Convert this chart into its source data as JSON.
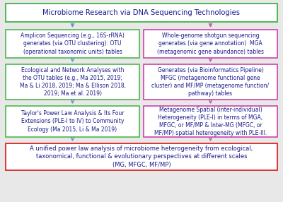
{
  "title": "Microbiome Research via DNA Sequencing Technologies",
  "title_color": "#1a1a8c",
  "title_box_edge": "#4db84d",
  "fig_bg": "#e8e8e8",
  "box_bg": "#ffffff",
  "left_boxes": [
    {
      "text": "Amplicon Sequencing (e.g., 16S-rRNA)\ngenerates (via OTU clustering): OTU\n(operational taxonomic units) tables",
      "box_edge": "#4db84d",
      "text_color": "#1a1a8c"
    },
    {
      "text": "Ecological and Network Analyses with\nthe OTU tables (e.g., Ma 2015, 2019;\nMa & Li 2018, 2019; Ma & Ellison 2018,\n2019; Ma et al. 2019)",
      "box_edge": "#4db84d",
      "text_color": "#1a1a8c"
    },
    {
      "text": "Taylor's Power Law Analysis & Its Four\nExtensions (PLE-I to IV) to Community\nEcology (Ma 2015, Li & Ma 2019)",
      "box_edge": "#4db84d",
      "text_color": "#1a1a8c"
    }
  ],
  "right_boxes": [
    {
      "text": "Whole-genome shotgun sequencing\ngenerates (via gene annotation)  MGA\n(metagenomic gene abundance) tables",
      "box_edge": "#cc44aa",
      "text_color": "#1a1a8c"
    },
    {
      "text": "Generates (via Bioinformatics Pipeline)\nMFGC (metagenome functional gene\ncluster) and MF/MP (metagenome function/\npathway) tables",
      "box_edge": "#cc44aa",
      "text_color": "#1a1a8c"
    },
    {
      "text": "Metagenome Spatial (inter-individual)\nHeterogeneity (PLE-I) in terms of MGA,\nMFGC, or MF/MP & Inter-MG (MFGC, or\nMF/MP) spatial heterogeneity with PLE-III.",
      "box_edge": "#cc44aa",
      "text_color": "#1a1a8c"
    }
  ],
  "bottom_box": {
    "text": "A unified power law analysis of microbiome heterogeneity from ecological,\ntaxonomical, functional & evolutionary perspectives at different scales\n(MG, MFGC, MF/MP)",
    "box_edge": "#dd3333",
    "text_color": "#1a1a8c"
  },
  "arrow_color_left": "#6699cc",
  "arrow_color_right": "#bb66aa"
}
